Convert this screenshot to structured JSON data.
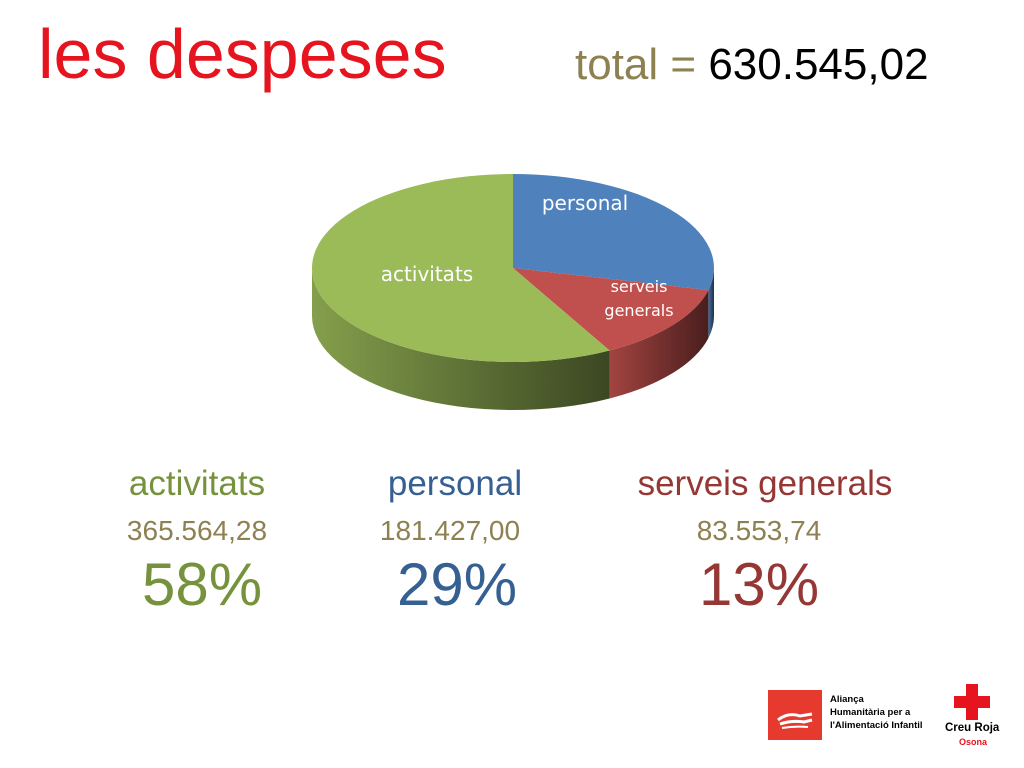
{
  "title": "les despeses",
  "total": {
    "label": "total =",
    "value": "630.545,02"
  },
  "chart_data": {
    "type": "pie",
    "title": "",
    "slices": [
      {
        "name": "personal",
        "value": 181427.0,
        "percent": 29,
        "color": "#4f81bd",
        "label_lines": [
          "personal"
        ]
      },
      {
        "name": "serveis generals",
        "value": 83553.74,
        "percent": 13,
        "color": "#c0504d",
        "label_lines": [
          "serveis",
          "generals"
        ]
      },
      {
        "name": "activitats",
        "value": 365564.28,
        "percent": 58,
        "color": "#9bbb59",
        "label_lines": [
          "activitats"
        ]
      }
    ],
    "legend": "none"
  },
  "categories": [
    {
      "name": "activitats",
      "amount": "365.564,28",
      "percent": "58%",
      "color": "#76923c"
    },
    {
      "name": "personal",
      "amount": "181.427,00",
      "percent": "29%",
      "color": "#366092"
    },
    {
      "name": "serveis generals",
      "amount": "83.553,74",
      "percent": "13%",
      "color": "#953735"
    }
  ],
  "footer": {
    "alliance_text": "Aliança Humanitària per a l'Alimentació Infantil",
    "alliance_lines": [
      "Aliança",
      "Humanitària per a",
      "l'Alimentació Infantil"
    ],
    "red_cross_name": "Creu Roja",
    "red_cross_sub": "Osona"
  }
}
